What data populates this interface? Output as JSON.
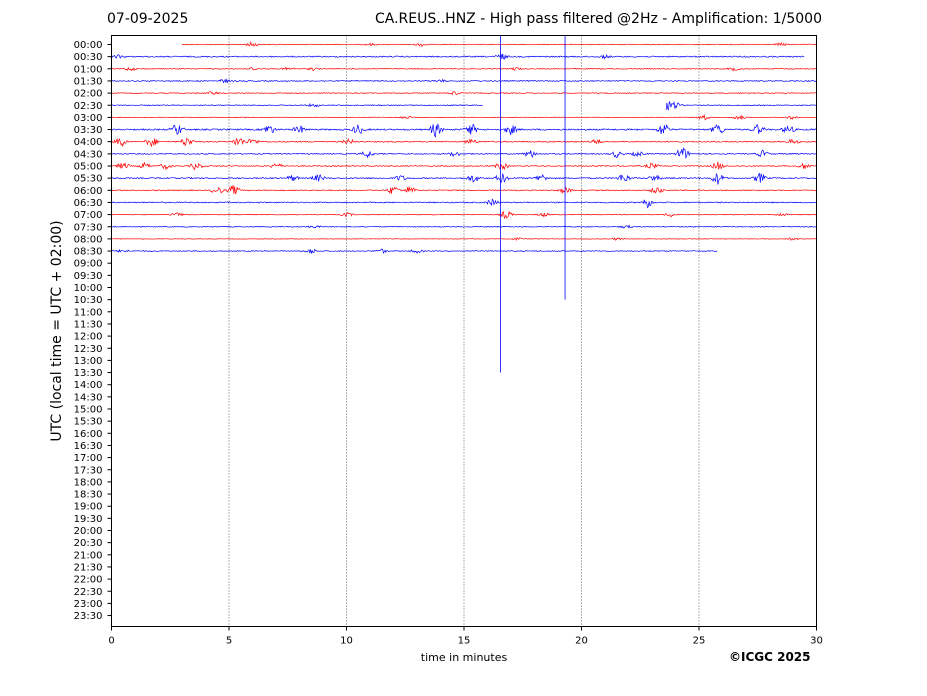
{
  "header": {
    "date": "07-09-2025",
    "title": "CA.REUS..HNZ - High pass filtered @2Hz - Amplification: 1/5000"
  },
  "footer": {
    "copyright": "©ICGC 2025"
  },
  "chart_data": {
    "type": "line",
    "title": "CA.REUS..HNZ - High pass filtered @2Hz - Amplification: 1/5000",
    "xlabel": "time in minutes",
    "ylabel": "UTC (local time = UTC + 02:00)",
    "xlim": [
      0,
      30
    ],
    "x_ticks": [
      0,
      5,
      10,
      15,
      20,
      25,
      30
    ],
    "grid": "vertical dotted lines at each x tick",
    "y_labels": [
      "00:00",
      "00:30",
      "01:00",
      "01:30",
      "02:00",
      "02:30",
      "03:00",
      "03:30",
      "04:00",
      "04:30",
      "05:00",
      "05:30",
      "06:00",
      "06:30",
      "07:00",
      "07:30",
      "08:00",
      "08:30",
      "09:00",
      "09:30",
      "10:00",
      "10:30",
      "11:00",
      "11:30",
      "12:00",
      "12:30",
      "13:00",
      "13:30",
      "14:00",
      "14:30",
      "15:00",
      "15:30",
      "16:00",
      "16:30",
      "17:00",
      "17:30",
      "18:00",
      "18:30",
      "19:00",
      "19:30",
      "20:00",
      "20:30",
      "21:00",
      "21:30",
      "22:00",
      "22:30",
      "23:00",
      "23:30"
    ],
    "colors": {
      "even_rows": "#ff0000",
      "odd_rows": "#0000ff"
    },
    "traces": [
      {
        "label": "00:00",
        "start": 3.0,
        "end": 30,
        "noise": 0.35,
        "events": [
          [
            6.0,
            2.5
          ],
          [
            13.2,
            1.8
          ],
          [
            11.0,
            1.2
          ],
          [
            28.5,
            1.5
          ]
        ]
      },
      {
        "label": "00:30",
        "start": 0,
        "end": 29.5,
        "noise": 0.6,
        "events": [
          [
            0.3,
            1.5
          ],
          [
            16.6,
            3.0
          ],
          [
            21.0,
            1.5
          ]
        ]
      },
      {
        "label": "01:00",
        "start": 0,
        "end": 30,
        "noise": 0.4,
        "events": [
          [
            0.8,
            1.8
          ],
          [
            6.0,
            1.5
          ],
          [
            7.5,
            1.5
          ],
          [
            8.6,
            1.5
          ],
          [
            17.2,
            1.4
          ],
          [
            26.5,
            1.8
          ]
        ]
      },
      {
        "label": "01:30",
        "start": 0,
        "end": 30,
        "noise": 0.5,
        "events": [
          [
            4.8,
            1.8
          ],
          [
            14.0,
            1.3
          ]
        ]
      },
      {
        "label": "02:00",
        "start": 0,
        "end": 30,
        "noise": 0.4,
        "events": [
          [
            4.3,
            1.6
          ],
          [
            14.6,
            1.9
          ]
        ]
      },
      {
        "label": "02:30",
        "start": 0,
        "end": 15.8,
        "noise": 0.45,
        "events": [
          [
            8.6,
            1.6
          ]
        ]
      },
      {
        "label": "02:30b",
        "start": 23.6,
        "end": 30,
        "noise": 0.45,
        "events": [
          [
            23.6,
            6.0
          ],
          [
            24.0,
            3.5
          ]
        ]
      },
      {
        "label": "03:00",
        "start": 0,
        "end": 30,
        "noise": 0.3,
        "events": [
          [
            12.5,
            1.5
          ],
          [
            25.2,
            3.0
          ],
          [
            26.7,
            2.5
          ],
          [
            29.0,
            2.0
          ]
        ]
      },
      {
        "label": "03:30",
        "start": 0,
        "end": 30,
        "noise": 0.7,
        "events": [
          [
            2.8,
            6.0
          ],
          [
            6.7,
            5.0
          ],
          [
            8.0,
            4.0
          ],
          [
            10.5,
            5.0
          ],
          [
            13.8,
            7.0
          ],
          [
            15.3,
            6.0
          ],
          [
            17.0,
            5.0
          ],
          [
            23.5,
            7.0
          ],
          [
            25.8,
            6.0
          ],
          [
            27.5,
            5.0
          ],
          [
            28.8,
            4.0
          ]
        ]
      },
      {
        "label": "04:00",
        "start": 0,
        "end": 30,
        "noise": 0.55,
        "events": [
          [
            0.4,
            5.0
          ],
          [
            1.7,
            5.0
          ],
          [
            3.2,
            5.0
          ],
          [
            5.4,
            5.0
          ],
          [
            6.0,
            3.0
          ],
          [
            10.1,
            2.5
          ],
          [
            15.3,
            2.5
          ],
          [
            20.6,
            2.5
          ],
          [
            29.0,
            2.5
          ]
        ]
      },
      {
        "label": "04:30",
        "start": 0,
        "end": 30,
        "noise": 0.5,
        "events": [
          [
            10.9,
            3.5
          ],
          [
            14.6,
            2.5
          ],
          [
            17.8,
            4.0
          ],
          [
            21.5,
            3.5
          ],
          [
            24.3,
            7.0
          ],
          [
            27.7,
            3.5
          ],
          [
            22.4,
            2.5
          ]
        ]
      },
      {
        "label": "05:00",
        "start": 0,
        "end": 30,
        "noise": 0.5,
        "events": [
          [
            0.5,
            3.5
          ],
          [
            1.4,
            3.0
          ],
          [
            2.3,
            3.0
          ],
          [
            3.6,
            4.0
          ],
          [
            7.0,
            3.0
          ],
          [
            16.6,
            4.0
          ],
          [
            23.0,
            3.0
          ],
          [
            25.8,
            4.0
          ],
          [
            29.5,
            3.0
          ]
        ]
      },
      {
        "label": "05:30",
        "start": 0,
        "end": 30,
        "noise": 0.6,
        "events": [
          [
            7.7,
            3.0
          ],
          [
            8.8,
            3.5
          ],
          [
            12.3,
            3.0
          ],
          [
            15.4,
            4.0
          ],
          [
            16.6,
            5.0
          ],
          [
            18.3,
            4.0
          ],
          [
            21.8,
            5.0
          ],
          [
            25.8,
            6.0
          ],
          [
            27.6,
            5.0
          ],
          [
            23.1,
            3.0
          ]
        ]
      },
      {
        "label": "06:00",
        "start": 0,
        "end": 30,
        "noise": 0.5,
        "events": [
          [
            4.5,
            4.0
          ],
          [
            5.2,
            5.0
          ],
          [
            12.0,
            4.5
          ],
          [
            12.7,
            4.0
          ],
          [
            19.3,
            3.0
          ],
          [
            23.2,
            4.0
          ]
        ]
      },
      {
        "label": "06:30",
        "start": 0,
        "end": 30,
        "noise": 0.55,
        "events": [
          [
            16.2,
            3.0
          ],
          [
            22.8,
            5.0
          ]
        ]
      },
      {
        "label": "07:00",
        "start": 0,
        "end": 30,
        "noise": 0.35,
        "events": [
          [
            2.8,
            1.8
          ],
          [
            10.0,
            2.0
          ],
          [
            16.8,
            4.5
          ],
          [
            18.4,
            2.0
          ],
          [
            23.8,
            2.0
          ],
          [
            28.5,
            1.5
          ]
        ]
      },
      {
        "label": "07:30",
        "start": 0,
        "end": 30,
        "noise": 0.4,
        "events": [
          [
            8.6,
            1.5
          ],
          [
            21.9,
            1.5
          ]
        ]
      },
      {
        "label": "08:00",
        "start": 0,
        "end": 30,
        "noise": 0.25,
        "events": [
          [
            17.3,
            1.5
          ],
          [
            21.5,
            1.2
          ],
          [
            29.0,
            1.5
          ]
        ]
      },
      {
        "label": "08:30",
        "start": 0,
        "end": 25.8,
        "noise": 0.45,
        "events": [
          [
            0.5,
            1.5
          ],
          [
            8.5,
            2.5
          ],
          [
            11.5,
            2.0
          ],
          [
            13.0,
            2.0
          ]
        ]
      }
    ],
    "spikes": [
      {
        "x": 16.55,
        "from": "00:00",
        "to": "13:30"
      },
      {
        "x": 19.3,
        "from": "00:00",
        "to": "10:30"
      }
    ]
  }
}
